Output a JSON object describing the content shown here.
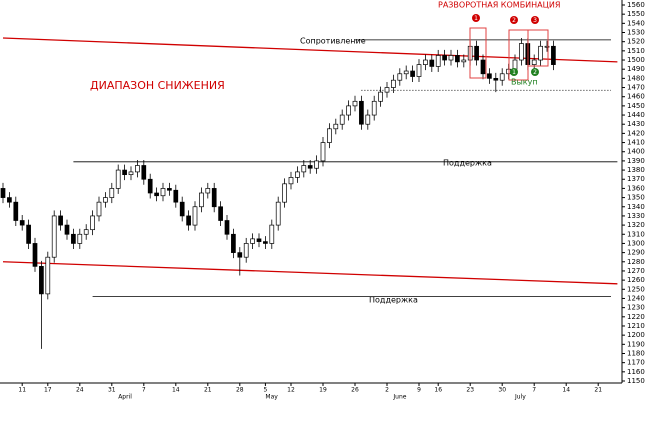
{
  "chart_data": {
    "type": "candlestick",
    "annotations": {
      "top": "РАЗВОРОТНАЯ КОМБИНАЦИЯ",
      "range": "ДИАПАЗОН СНИЖЕНИЯ",
      "resistance": "Сопротивление",
      "support1": "Поддержка",
      "support2": "Поддержка",
      "buyback": "Выкуп",
      "m1": "1",
      "m2": "2",
      "m3": "3",
      "g1": "1",
      "g2": "2"
    },
    "categories": [
      null,
      null,
      null,
      "11",
      null,
      null,
      null,
      "17",
      null,
      null,
      null,
      null,
      "24",
      null,
      null,
      null,
      null,
      "31",
      null,
      null,
      null,
      null,
      "7",
      null,
      null,
      null,
      null,
      "14",
      null,
      null,
      null,
      null,
      "21",
      null,
      null,
      null,
      null,
      "28",
      null,
      null,
      null,
      "5",
      null,
      null,
      null,
      "12",
      null,
      null,
      null,
      null,
      "19",
      null,
      null,
      null,
      null,
      "26",
      null,
      null,
      null,
      null,
      "2",
      null,
      null,
      null,
      null,
      "9",
      null,
      null,
      "16",
      null,
      null,
      null,
      null,
      "23",
      null,
      null,
      null,
      null,
      "30",
      null,
      null,
      null,
      null,
      "7",
      null,
      null,
      null,
      null,
      "14",
      null,
      null,
      null,
      null,
      "21"
    ],
    "months": [
      null,
      null,
      null,
      null,
      null,
      null,
      null,
      null,
      null,
      null,
      null,
      null,
      null,
      null,
      null,
      null,
      null,
      null,
      "April",
      null,
      null,
      null,
      null,
      null,
      null,
      null,
      null,
      null,
      null,
      null,
      null,
      null,
      null,
      null,
      null,
      null,
      null,
      null,
      null,
      null,
      null,
      "May",
      null,
      null,
      null,
      null,
      null,
      null,
      null,
      null,
      null,
      null,
      null,
      null,
      null,
      null,
      null,
      null,
      null,
      null,
      null,
      "June",
      null,
      null,
      null,
      null,
      null,
      null,
      null,
      null,
      null,
      null,
      null,
      null,
      null,
      null,
      null,
      null,
      null,
      null,
      "July",
      null,
      null,
      null,
      null,
      null,
      null,
      null,
      null,
      null,
      null,
      null,
      null,
      null
    ],
    "open": [
      1360,
      1350,
      1345,
      1325,
      1320,
      1300,
      1275,
      1245,
      1285,
      1330,
      1320,
      1310,
      1300,
      1310,
      1315,
      1330,
      1345,
      1350,
      1360,
      1380,
      1375,
      1378,
      1385,
      1370,
      1355,
      1352,
      1360,
      1358,
      1345,
      1330,
      1320,
      1340,
      1355,
      1360,
      1340,
      1325,
      1310,
      1290,
      1285,
      1300,
      1305,
      1302,
      1300,
      1320,
      1345,
      1365,
      1372,
      1378,
      1385,
      1382,
      1390,
      1410,
      1425,
      1430,
      1440,
      1450,
      1455,
      1430,
      1440,
      1455,
      1465,
      1470,
      1478,
      1485,
      1488,
      1482,
      1495,
      1500,
      1493,
      1505,
      1500,
      1505,
      1498,
      1500,
      1515,
      1500,
      1485,
      1480,
      1478,
      1485,
      1490,
      1500,
      1518,
      1495,
      1500,
      1515,
      1515,
      null,
      null,
      null,
      null,
      null,
      null,
      null
    ],
    "high": [
      1366,
      1356,
      1351,
      1331,
      1326,
      1306,
      1281,
      1291,
      1336,
      1336,
      1326,
      1316,
      1316,
      1321,
      1336,
      1351,
      1356,
      1366,
      1386,
      1386,
      1384,
      1391,
      1391,
      1376,
      1361,
      1366,
      1366,
      1364,
      1351,
      1336,
      1346,
      1361,
      1366,
      1366,
      1346,
      1331,
      1316,
      1296,
      1306,
      1311,
      1311,
      1308,
      1326,
      1351,
      1371,
      1378,
      1384,
      1391,
      1391,
      1396,
      1416,
      1431,
      1436,
      1446,
      1456,
      1461,
      1461,
      1446,
      1461,
      1471,
      1476,
      1484,
      1491,
      1494,
      1494,
      1501,
      1506,
      1506,
      1511,
      1511,
      1511,
      1511,
      1506,
      1521,
      1521,
      1506,
      1491,
      1486,
      1491,
      1496,
      1506,
      1524,
      1524,
      1506,
      1521,
      1521,
      1521,
      null,
      null,
      null,
      null,
      null,
      null,
      null
    ],
    "low": [
      1344,
      1339,
      1319,
      1314,
      1294,
      1269,
      1185,
      1239,
      1279,
      1314,
      1304,
      1294,
      1294,
      1304,
      1309,
      1324,
      1339,
      1344,
      1354,
      1369,
      1369,
      1372,
      1364,
      1349,
      1346,
      1346,
      1352,
      1339,
      1324,
      1314,
      1314,
      1334,
      1349,
      1334,
      1319,
      1304,
      1284,
      1265,
      1279,
      1294,
      1296,
      1294,
      1294,
      1314,
      1339,
      1359,
      1366,
      1372,
      1376,
      1376,
      1384,
      1404,
      1419,
      1424,
      1434,
      1444,
      1424,
      1424,
      1434,
      1449,
      1459,
      1464,
      1472,
      1479,
      1476,
      1476,
      1489,
      1487,
      1487,
      1494,
      1494,
      1492,
      1492,
      1494,
      1494,
      1479,
      1474,
      1465,
      1472,
      1479,
      1484,
      1494,
      1489,
      1489,
      1494,
      1509,
      1489,
      null,
      null,
      null,
      null,
      null,
      null,
      null
    ],
    "close": [
      1350,
      1345,
      1325,
      1320,
      1300,
      1275,
      1245,
      1285,
      1330,
      1320,
      1310,
      1300,
      1310,
      1315,
      1330,
      1345,
      1350,
      1360,
      1380,
      1375,
      1378,
      1385,
      1370,
      1355,
      1352,
      1360,
      1358,
      1345,
      1330,
      1320,
      1340,
      1355,
      1360,
      1340,
      1325,
      1310,
      1290,
      1285,
      1300,
      1305,
      1302,
      1300,
      1320,
      1345,
      1365,
      1372,
      1378,
      1385,
      1382,
      1390,
      1410,
      1425,
      1430,
      1440,
      1450,
      1455,
      1430,
      1440,
      1455,
      1465,
      1470,
      1478,
      1485,
      1488,
      1482,
      1495,
      1500,
      1493,
      1505,
      1500,
      1505,
      1498,
      1500,
      1515,
      1500,
      1485,
      1480,
      1478,
      1485,
      1490,
      1500,
      1518,
      1495,
      1500,
      1515,
      1515,
      1495,
      null,
      null,
      null,
      null,
      null,
      null,
      null
    ],
    "up_color": "#ffffff",
    "down_color": "#000000",
    "trend_lines": [
      {
        "color": "#d00000",
        "x": [
          0,
          96
        ],
        "y": [
          1524,
          1498
        ]
      },
      {
        "color": "#d00000",
        "x": [
          0,
          96
        ],
        "y": [
          1280,
          1256
        ]
      },
      {
        "color": "#000000",
        "x": [
          55,
          95
        ],
        "y": [
          1522,
          1522
        ]
      },
      {
        "color": "#000000",
        "x": [
          11,
          96
        ],
        "y": [
          1389,
          1389
        ]
      },
      {
        "color": "#000000",
        "x": [
          14,
          95
        ],
        "y": [
          1242,
          1242
        ]
      },
      {
        "color": "#000000",
        "x": [
          56,
          95
        ],
        "y": [
          1467,
          1467
        ],
        "dashed": true
      }
    ],
    "ylim": [
      1150,
      1560
    ],
    "yticks": [
      1150,
      1160,
      1170,
      1180,
      1190,
      1200,
      1210,
      1220,
      1230,
      1240,
      1250,
      1260,
      1270,
      1280,
      1290,
      1300,
      1310,
      1320,
      1330,
      1340,
      1350,
      1360,
      1370,
      1380,
      1390,
      1400,
      1410,
      1420,
      1430,
      1440,
      1450,
      1460,
      1470,
      1480,
      1490,
      1500,
      1510,
      1520,
      1530,
      1540,
      1550,
      1560
    ]
  }
}
